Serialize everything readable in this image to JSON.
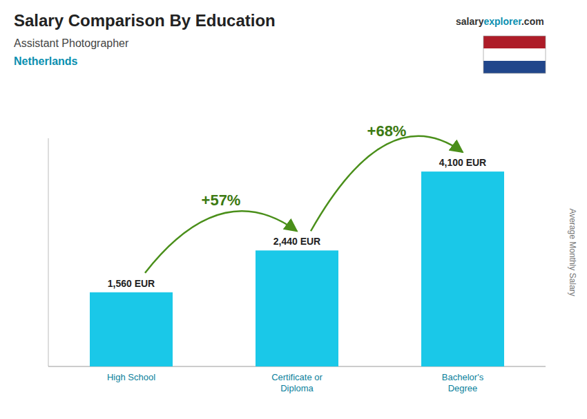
{
  "chart_data": {
    "type": "bar",
    "title": "Salary Comparison By Education",
    "subtitle": "Assistant Photographer",
    "country": "Netherlands",
    "source": [
      "salary",
      "explorer",
      ".com"
    ],
    "ylabel": "Average Monthly Salary",
    "categories": [
      "High School",
      "Certificate or\nDiploma",
      "Bachelor's\nDegree"
    ],
    "values": [
      1560,
      2440,
      4100
    ],
    "value_labels": [
      "1,560 EUR",
      "2,440 EUR",
      "4,100 EUR"
    ],
    "data_labels": true,
    "annotations": [
      "+57%",
      "+68%"
    ],
    "color": "#1ac8e8",
    "flag_colors": [
      "#AE1C28",
      "#FFFFFF",
      "#21468B"
    ],
    "ylim": [
      0,
      4800
    ],
    "tick_labels": "x",
    "grid": false
  }
}
